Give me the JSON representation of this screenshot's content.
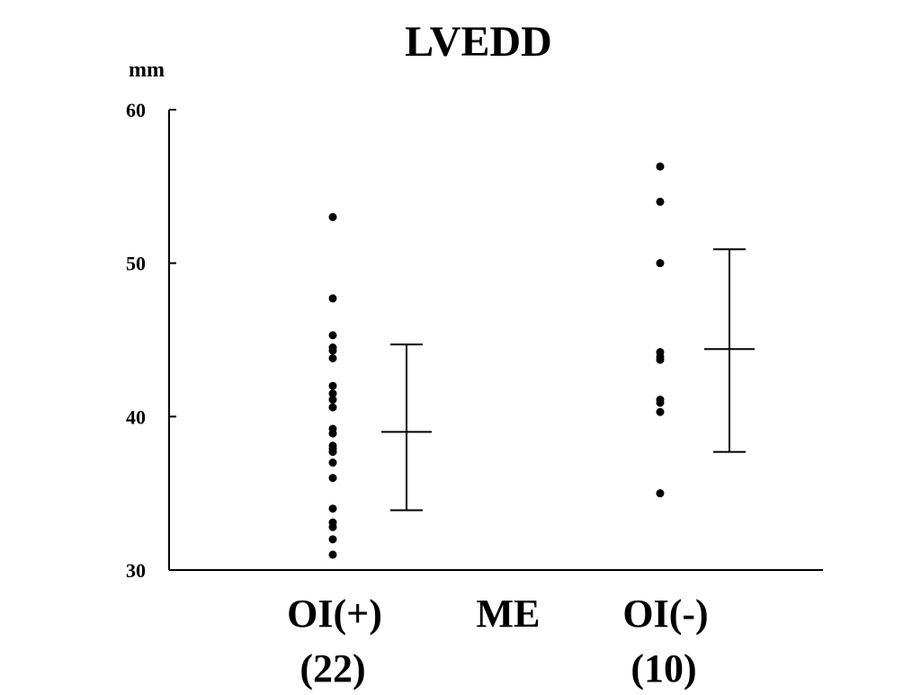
{
  "chart_data": {
    "type": "scatter",
    "title": "LVEDD",
    "ylabel": "mm",
    "ylim": [
      30,
      60
    ],
    "yticks": [
      30,
      40,
      50,
      60
    ],
    "grid": false,
    "legend": "none",
    "categories": [
      {
        "label": "OI(+)",
        "sublabel": "(22)"
      },
      {
        "label": "ME",
        "sublabel": ""
      },
      {
        "label": "OI(-)",
        "sublabel": "(10)"
      }
    ],
    "series": [
      {
        "category": "OI(+)",
        "points": [
          53,
          47.7,
          45.3,
          44.5,
          44.3,
          43.8,
          42,
          41.5,
          41.1,
          40.6,
          39.2,
          38.9,
          38.1,
          37.9,
          37.7,
          37,
          36,
          34,
          33.1,
          32.8,
          32,
          31
        ],
        "mean": 39,
        "upper": 44.7,
        "lower": 33.9
      },
      {
        "category": "OI(-)",
        "points": [
          56.3,
          54,
          50,
          44.2,
          43.9,
          43.7,
          41.1,
          40.9,
          40.3,
          35
        ],
        "mean": 44.4,
        "upper": 50.9,
        "lower": 37.7
      }
    ],
    "colors": {
      "ink": "#000000",
      "background": "#ffffff"
    }
  }
}
